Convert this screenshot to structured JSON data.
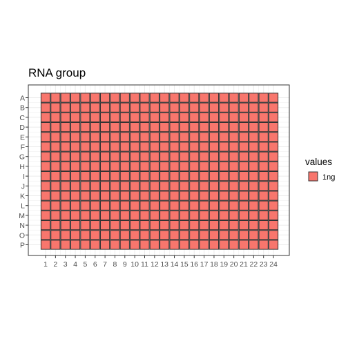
{
  "chart_data": {
    "type": "heatmap",
    "title": "RNA group",
    "xlabel": "",
    "ylabel": "",
    "columns": [
      "1",
      "2",
      "3",
      "4",
      "5",
      "6",
      "7",
      "8",
      "9",
      "10",
      "11",
      "12",
      "13",
      "14",
      "15",
      "16",
      "17",
      "18",
      "19",
      "20",
      "21",
      "22",
      "23",
      "24"
    ],
    "rows": [
      "A",
      "B",
      "C",
      "D",
      "E",
      "F",
      "G",
      "H",
      "I",
      "J",
      "K",
      "L",
      "M",
      "N",
      "O",
      "P"
    ],
    "cell_value": "1ng",
    "legend": {
      "title": "values",
      "entries": [
        {
          "label": "1ng",
          "color": "#F8766D"
        }
      ],
      "placement": "right"
    },
    "grid": true
  },
  "colors": {
    "fill": "#F8766D",
    "cell_border": "#333333",
    "panel_border": "#333333",
    "gridline": "#ebebeb"
  }
}
